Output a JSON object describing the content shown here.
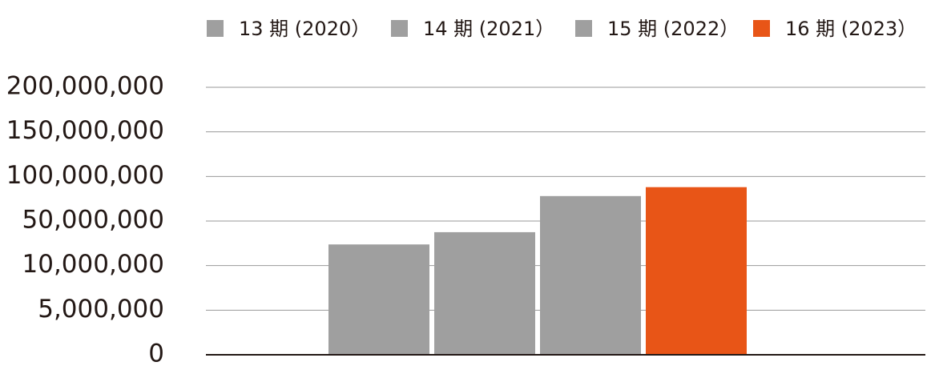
{
  "chart_data": {
    "type": "bar",
    "categories": [
      null
    ],
    "series": [
      {
        "name": "13 期 (2020）",
        "color": "#9f9f9f",
        "values": [
          29000000
        ]
      },
      {
        "name": "14 期 (2021）",
        "color": "#9f9f9f",
        "values": [
          40000000
        ]
      },
      {
        "name": "15 期 (2022）",
        "color": "#9f9f9f",
        "values": [
          78000000
        ]
      },
      {
        "name": "16 期 (2023）",
        "color": "#e85517",
        "values": [
          88000000
        ]
      }
    ],
    "ylim": [
      0,
      200000000
    ],
    "yticks": [
      0,
      {
        "value": 5000000,
        "label": "5,000,000"
      },
      {
        "value": 10000000,
        "label": "10,000,000"
      },
      {
        "value": 50000000,
        "label": "50,000,000"
      },
      {
        "value": 100000000,
        "label": "100,000,000"
      },
      {
        "value": 150000000,
        "label": "150,000,000"
      },
      {
        "value": 200000000,
        "label": "200,000,000"
      }
    ],
    "grid": true,
    "legend": "top"
  }
}
